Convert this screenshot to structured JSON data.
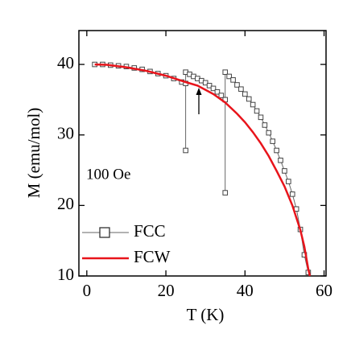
{
  "chart_data": {
    "type": "line",
    "xlabel": "T (K)",
    "ylabel": "M (emu/mol)",
    "annotation": "100 Oe",
    "xlim": [
      -2,
      60.5
    ],
    "ylim": [
      10,
      44.8
    ],
    "xticks": [
      0,
      20,
      40,
      60
    ],
    "yticks": [
      10,
      20,
      30,
      40
    ],
    "legend": "lower left",
    "series": [
      {
        "name": "FCC",
        "color": "#666666",
        "marker": "square",
        "x": [
          2,
          4,
          6,
          8,
          10,
          12,
          14,
          16,
          18,
          20,
          22,
          24,
          25,
          25,
          25,
          26,
          27,
          28,
          29,
          30,
          31,
          32,
          33,
          34,
          35,
          35,
          35,
          36,
          37,
          38,
          39,
          40,
          41,
          42,
          43,
          44,
          45,
          46,
          47,
          48,
          49,
          50,
          51,
          52,
          53,
          54,
          55,
          56
        ],
        "values": [
          40.0,
          40.0,
          39.9,
          39.8,
          39.7,
          39.5,
          39.3,
          39.0,
          38.7,
          38.4,
          38.0,
          37.5,
          37.3,
          27.8,
          38.9,
          38.6,
          38.3,
          38.0,
          37.7,
          37.4,
          37.0,
          36.6,
          36.1,
          35.6,
          35.0,
          21.8,
          38.9,
          38.3,
          37.8,
          37.1,
          36.5,
          35.8,
          35.1,
          34.3,
          33.4,
          32.5,
          31.4,
          30.3,
          29.1,
          27.8,
          26.4,
          24.9,
          23.4,
          21.6,
          19.5,
          16.6,
          13.0,
          10.5
        ]
      },
      {
        "name": "FCW",
        "color": "#e8141b",
        "marker": "none",
        "x": [
          2,
          5,
          10,
          15,
          20,
          25,
          28,
          30,
          32,
          35,
          38,
          40,
          42,
          44,
          46,
          48,
          50,
          52,
          54,
          55,
          56,
          56.4
        ],
        "values": [
          40.0,
          39.95,
          39.6,
          39.1,
          38.4,
          37.5,
          37.0,
          36.4,
          35.8,
          34.6,
          33.0,
          31.8,
          30.4,
          28.8,
          27.0,
          24.9,
          22.7,
          20.0,
          16.5,
          14.2,
          11.0,
          10.0
        ]
      }
    ]
  }
}
